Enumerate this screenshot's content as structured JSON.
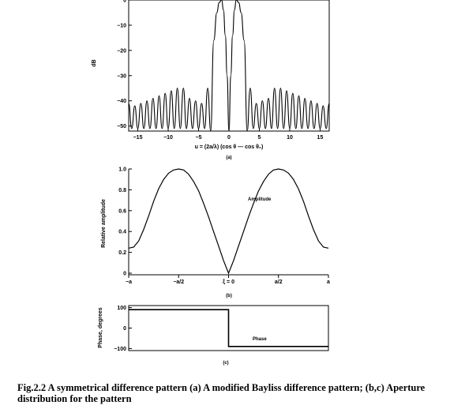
{
  "caption": "Fig.2.2 A symmetrical difference pattern (a) A modified Bayliss difference pattern; (b,c) Aperture distribution for the pattern",
  "chart_data": [
    {
      "type": "line",
      "panel_label": "(a)",
      "xlabel": "u = (2a/λ) (cos θ — cos θ₀)",
      "ylabel": "dB",
      "xlim": [
        -16.5,
        16.5
      ],
      "ylim": [
        -52,
        0
      ],
      "x_ticks": [
        -15,
        -10,
        -5,
        0,
        5,
        10,
        15
      ],
      "x_tick_labels": [
        "−15",
        "−10",
        "−5",
        "0",
        "5",
        "10",
        "15"
      ],
      "y_ticks": [
        0,
        -10,
        -20,
        -30,
        -40,
        -50
      ],
      "y_tick_labels": [
        "0",
        "−10",
        "−20",
        "−30",
        "−40",
        "−50"
      ],
      "grid": false,
      "series": [
        {
          "x": [
            -16.5,
            -16.0,
            -15.5,
            -15.0,
            -14.5,
            -14.0,
            -13.5,
            -13.0,
            -12.5,
            -12.0,
            -11.5,
            -11.0,
            -10.5,
            -10.0,
            -9.5,
            -9.0,
            -8.5,
            -8.0,
            -7.5,
            -7.0,
            -6.5,
            -6.0,
            -5.5,
            -5.0,
            -4.5,
            -4.0,
            -3.5,
            -3.0,
            -2.5,
            -2.0,
            -1.6,
            -1.2,
            -0.9,
            -0.6,
            -0.3,
            0.0,
            0.3,
            0.6,
            0.9,
            1.2,
            1.6,
            2.0,
            2.5,
            3.0,
            3.5,
            4.0,
            4.5,
            5.0,
            5.5,
            6.0,
            6.5,
            7.0,
            7.5,
            8.0,
            8.5,
            9.0,
            9.5,
            10.0,
            10.5,
            11.0,
            11.5,
            12.0,
            12.5,
            13.0,
            13.5,
            14.0,
            14.5,
            15.0,
            15.5,
            16.0,
            16.5
          ],
          "y": [
            -41,
            -51,
            -42,
            -51,
            -41,
            -51,
            -40,
            -51,
            -39,
            -51,
            -38,
            -51,
            -37,
            -51,
            -36,
            -51,
            -35,
            -51,
            -35,
            -51,
            -39,
            -51,
            -40,
            -51,
            -41,
            -51,
            -35,
            -52,
            -16,
            -5,
            -1,
            0,
            -4,
            -14,
            -30,
            -52,
            -30,
            -14,
            -4,
            0,
            -1,
            -5,
            -16,
            -52,
            -35,
            -51,
            -41,
            -51,
            -40,
            -51,
            -39,
            -51,
            -35,
            -51,
            -35,
            -51,
            -36,
            -51,
            -37,
            -51,
            -38,
            -51,
            -39,
            -51,
            -40,
            -51,
            -41,
            -51,
            -42,
            -51,
            -41
          ]
        }
      ]
    },
    {
      "type": "line",
      "panel_label": "(b)",
      "ylabel": "Relative amplitude",
      "xlim": [
        -1,
        1
      ],
      "ylim": [
        0,
        1.0
      ],
      "x_ticks": [
        -1,
        -0.5,
        0,
        0.5,
        1
      ],
      "x_tick_labels": [
        "−a",
        "−a/2",
        "ξ = 0",
        "a/2",
        "a"
      ],
      "y_ticks": [
        0,
        0.2,
        0.4,
        0.6,
        0.8,
        1.0
      ],
      "y_tick_labels": [
        "0",
        "0.2",
        "0.4",
        "0.6",
        "0.8",
        "1.0"
      ],
      "grid": false,
      "annotations": [
        "Amplitude"
      ],
      "series": [
        {
          "x": [
            -1.0,
            -0.95,
            -0.9,
            -0.85,
            -0.8,
            -0.75,
            -0.7,
            -0.65,
            -0.6,
            -0.55,
            -0.5,
            -0.45,
            -0.4,
            -0.35,
            -0.3,
            -0.25,
            -0.2,
            -0.15,
            -0.1,
            -0.05,
            0.0,
            0.05,
            0.1,
            0.15,
            0.2,
            0.25,
            0.3,
            0.35,
            0.4,
            0.45,
            0.5,
            0.55,
            0.6,
            0.65,
            0.7,
            0.75,
            0.8,
            0.85,
            0.9,
            0.95,
            1.0
          ],
          "y": [
            0.24,
            0.25,
            0.31,
            0.42,
            0.55,
            0.69,
            0.81,
            0.9,
            0.96,
            0.99,
            1.0,
            0.99,
            0.95,
            0.88,
            0.79,
            0.67,
            0.54,
            0.4,
            0.26,
            0.12,
            0.0,
            0.12,
            0.26,
            0.4,
            0.54,
            0.67,
            0.79,
            0.88,
            0.95,
            0.99,
            1.0,
            0.99,
            0.96,
            0.9,
            0.81,
            0.69,
            0.55,
            0.42,
            0.31,
            0.25,
            0.24
          ]
        }
      ]
    },
    {
      "type": "line",
      "panel_label": "(c)",
      "ylabel": "Phase, degrees",
      "xlim": [
        -1,
        1
      ],
      "ylim": [
        -110,
        110
      ],
      "y_ticks": [
        100,
        0,
        -100
      ],
      "y_tick_labels": [
        "100",
        "0",
        "−100"
      ],
      "grid": false,
      "annotations": [
        "Phase"
      ],
      "series": [
        {
          "x": [
            -1.0,
            0.0,
            0.0,
            1.0
          ],
          "y": [
            90,
            90,
            -90,
            -90
          ]
        }
      ]
    }
  ]
}
